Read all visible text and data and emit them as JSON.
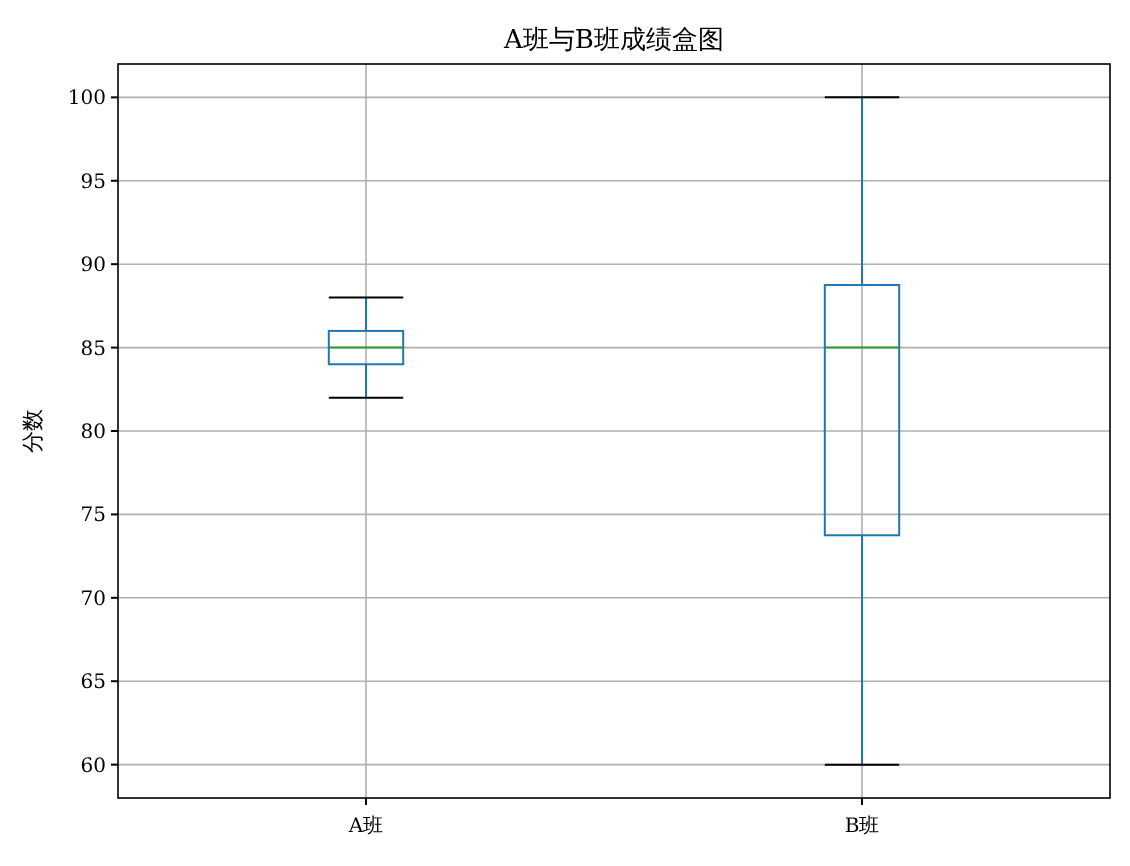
{
  "chart_data": {
    "type": "box",
    "title": "A班与B班成绩盒图",
    "ylabel": "分数",
    "categories": [
      "A班",
      "B班"
    ],
    "boxes": [
      {
        "low": 82,
        "q1": 84,
        "median": 85,
        "q3": 86,
        "high": 88
      },
      {
        "low": 60,
        "q1": 73.75,
        "median": 85,
        "q3": 88.75,
        "high": 100
      }
    ],
    "color": "#1f77b4",
    "ylim": [
      58,
      102
    ],
    "yticks": [
      60,
      65,
      70,
      75,
      80,
      85,
      90,
      95,
      100
    ],
    "grid": true
  }
}
